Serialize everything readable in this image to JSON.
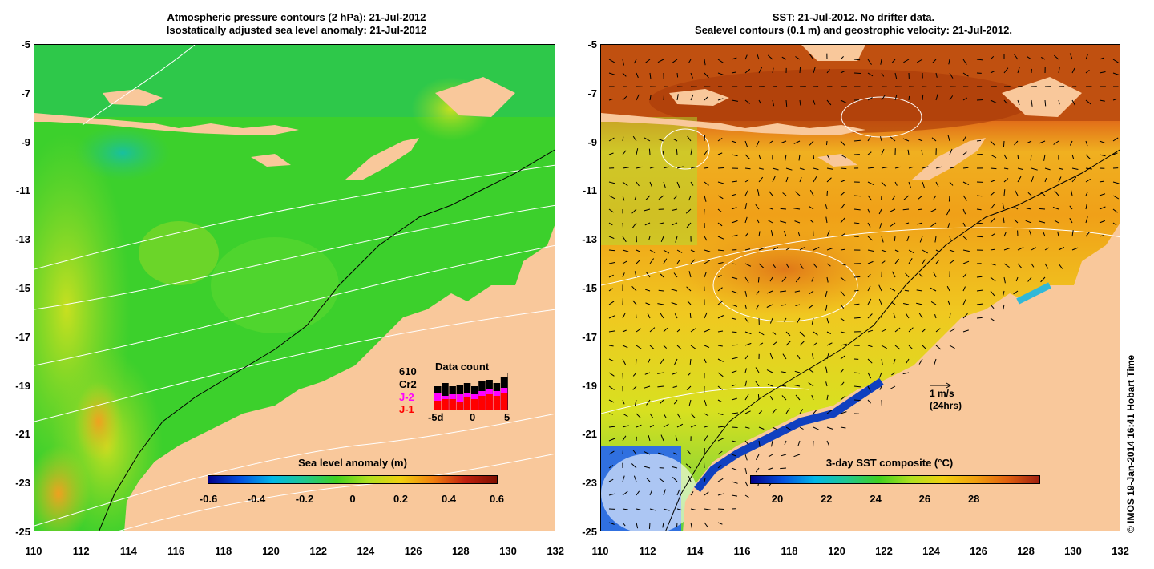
{
  "left": {
    "title_line1": "Atmospheric pressure contours (2 hPa): 21-Jul-2012",
    "title_line2": "Isostatically adjusted sea level anomaly: 21-Jul-2012",
    "colorbar": {
      "title": "Sea level anomaly (m)",
      "ticks": [
        "-0.6",
        "-0.4",
        "-0.2",
        "0",
        "0.2",
        "0.4",
        "0.6"
      ]
    },
    "data_count": {
      "title": "Data count",
      "number": "610",
      "legend": [
        "Cr2",
        "J-2",
        "J-1"
      ],
      "legend_colors": [
        "#000000",
        "#ff00ff",
        "#ff0000"
      ],
      "axis": [
        "-5d",
        "0",
        "5"
      ]
    }
  },
  "right": {
    "title_line1": "SST: 21-Jul-2012. No drifter data.",
    "title_line2": "Sealevel contours (0.1 m) and geostrophic velocity: 21-Jul-2012.",
    "colorbar": {
      "title": "3-day SST composite (°C)",
      "ticks": [
        "20",
        "22",
        "24",
        "26",
        "28"
      ]
    },
    "vector_scale": {
      "line1": "1 m/s",
      "line2": "(24hrs)"
    }
  },
  "y_ticks": [
    "-5",
    "-7",
    "-9",
    "-11",
    "-13",
    "-15",
    "-17",
    "-19",
    "-21",
    "-23",
    "-25"
  ],
  "x_ticks": [
    "110",
    "112",
    "114",
    "116",
    "118",
    "120",
    "122",
    "124",
    "126",
    "128",
    "130",
    "132"
  ],
  "copyright": "© IMOS 19-Jan-2014 16:41 Hobart Time",
  "colors": {
    "land": "#f9c89b",
    "ocean_green": "#3ccf2c",
    "warm_orange": "#e88a1a",
    "cold_blue": "#0020a0"
  }
}
